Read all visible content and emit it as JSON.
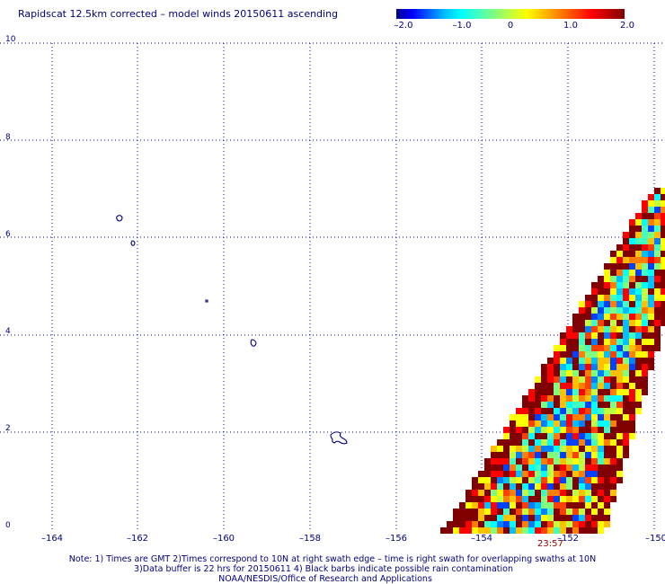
{
  "title": "Rapidscat 12.5km corrected – model winds 20150611 ascending",
  "colorbar": {
    "ticks": [
      "–2.0",
      "–1.0",
      "0",
      "1.0",
      "2.0"
    ],
    "colors": [
      "#000090",
      "#0000ff",
      "#0060ff",
      "#00c0ff",
      "#00ffff",
      "#40ffc0",
      "#80ff80",
      "#c0ff40",
      "#ffff00",
      "#ffc000",
      "#ff8000",
      "#ff4000",
      "#ff0000",
      "#c00000",
      "#800000"
    ]
  },
  "y_axis": {
    "labels": [
      "10",
      "8",
      "6",
      "4",
      "2",
      "0"
    ]
  },
  "x_axis": {
    "labels": [
      "–164",
      "–162",
      "–160",
      "–158",
      "–156",
      "–154",
      "–152",
      "–150"
    ]
  },
  "swath": {
    "time_label": "23:57",
    "colors": [
      "#800000",
      "#ff0000",
      "#ff4000",
      "#ff8000",
      "#ffc000",
      "#ffff00",
      "#c0ff40",
      "#80ff80",
      "#40ffc0",
      "#00ffff",
      "#00c0ff",
      "#0080ff",
      "#0040ff",
      "#ffffff"
    ]
  },
  "islands": {
    "color": "#000080"
  },
  "grid": {
    "visible": true,
    "style": "dotted",
    "color": "#0000a0"
  },
  "notes": [
    "Note: 1) Times are GMT 2)Times correspond to 10N at right swath edge – time is right swath for overlapping swaths at 10N",
    "3)Data buffer is 22 hrs for 20150611 4) Black barbs indicate possible rain contamination",
    "NOAA/NESDIS/Office of Research and Applications"
  ]
}
